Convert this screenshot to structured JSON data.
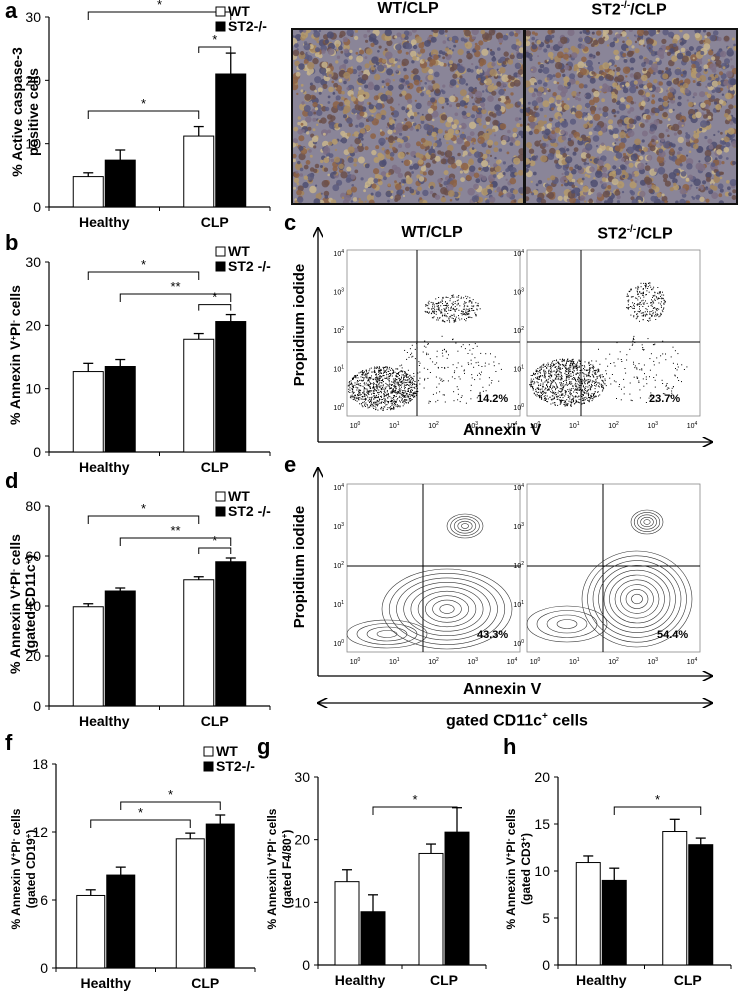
{
  "panel_letters": {
    "a": "a",
    "b": "b",
    "c": "c",
    "d": "d",
    "e": "e",
    "f": "f",
    "g": "g",
    "h": "h"
  },
  "legend": {
    "wt": "WT",
    "st2_a": "ST2-/-",
    "st2_b": "ST2 -/-",
    "st2_f": "ST2-/-"
  },
  "categories": [
    "Healthy",
    "CLP"
  ],
  "sig": {
    "one": "*",
    "two": "**"
  },
  "images": {
    "wt_title": "WT/CLP",
    "st2_title": "ST2",
    "st2_sup": "-/-",
    "st2_suffix": "/CLP"
  },
  "flow": {
    "y_title": "Propidium iodide",
    "x_title": "Annexin V",
    "gated": "gated CD11c",
    "gated_sup": "+",
    "gated_suffix": " cells",
    "c_pct_wt": "14.2%",
    "c_pct_st2": "23.7%",
    "e_pct_wt": "43.3%",
    "e_pct_st2": "54.4%",
    "tick_base": "10",
    "tick_exps": [
      "0",
      "1",
      "2",
      "3",
      "4"
    ]
  },
  "colors": {
    "wt": "#ffffff",
    "st2": "#000000",
    "stain_brown": "#8a5a3a",
    "stain_blue": "#5a6a8a"
  },
  "chart_data": [
    {
      "id": "a",
      "type": "bar",
      "ylabel_1": "% Active caspase-3",
      "ylabel_2": "positive cells",
      "ylim": [
        0,
        30
      ],
      "yticks": [
        0,
        10,
        20,
        30
      ],
      "series": [
        {
          "name": "WT",
          "values": [
            4.8,
            11.2
          ],
          "errors": [
            0.6,
            1.5
          ]
        },
        {
          "name": "ST2-/-",
          "values": [
            7.4,
            21.0
          ],
          "errors": [
            1.6,
            3.3
          ]
        }
      ],
      "brackets": [
        {
          "a": 0,
          "b": 2,
          "label": "*"
        },
        {
          "a": 0,
          "b": 3,
          "label": "*"
        },
        {
          "a": 2,
          "b": 3,
          "label": "*"
        }
      ]
    },
    {
      "id": "b",
      "type": "bar",
      "ylabel_1": "% Annexin V",
      "ylabel_2": "",
      "ylim": [
        0,
        30
      ],
      "yticks": [
        0,
        10,
        20,
        30
      ],
      "series": [
        {
          "name": "WT",
          "values": [
            12.7,
            17.8
          ],
          "errors": [
            1.3,
            0.9
          ]
        },
        {
          "name": "ST2 -/-",
          "values": [
            13.5,
            20.6
          ],
          "errors": [
            1.1,
            1.1
          ]
        }
      ],
      "brackets": [
        {
          "a": 0,
          "b": 2,
          "label": "*"
        },
        {
          "a": 1,
          "b": 3,
          "label": "**"
        },
        {
          "a": 2,
          "b": 3,
          "label": "*"
        }
      ]
    },
    {
      "id": "d",
      "type": "bar",
      "ylabel_1": "% Annexin V",
      "ylabel_2": "(gated CD11c",
      "ylim": [
        0,
        80
      ],
      "yticks": [
        0,
        20,
        40,
        60,
        80
      ],
      "series": [
        {
          "name": "WT",
          "values": [
            39.7,
            50.5
          ],
          "errors": [
            1.2,
            1.2
          ]
        },
        {
          "name": "ST2 -/-",
          "values": [
            46.0,
            57.7
          ],
          "errors": [
            1.2,
            1.5
          ]
        }
      ],
      "brackets": [
        {
          "a": 0,
          "b": 2,
          "label": "*"
        },
        {
          "a": 1,
          "b": 3,
          "label": "**"
        },
        {
          "a": 2,
          "b": 3,
          "label": "*"
        }
      ]
    },
    {
      "id": "f",
      "type": "bar",
      "ylabel_1": "% Annexin V",
      "ylabel_2": "(gated CD19",
      "ylim": [
        0,
        18
      ],
      "yticks": [
        0,
        6,
        12,
        18
      ],
      "series": [
        {
          "name": "WT",
          "values": [
            6.4,
            11.4
          ],
          "errors": [
            0.5,
            0.5
          ]
        },
        {
          "name": "ST2-/-",
          "values": [
            8.2,
            12.7
          ],
          "errors": [
            0.7,
            0.8
          ]
        }
      ],
      "brackets": [
        {
          "a": 0,
          "b": 2,
          "label": "*"
        },
        {
          "a": 1,
          "b": 3,
          "label": "*"
        }
      ]
    },
    {
      "id": "g",
      "type": "bar",
      "ylabel_1": "% Annexin V",
      "ylabel_2": "(gated F4/80",
      "ylim": [
        0,
        30
      ],
      "yticks": [
        0,
        10,
        20,
        30
      ],
      "series": [
        {
          "name": "WT",
          "values": [
            13.3,
            17.8
          ],
          "errors": [
            1.9,
            1.5
          ]
        },
        {
          "name": "ST2-/-",
          "values": [
            8.5,
            21.2
          ],
          "errors": [
            2.7,
            3.9
          ]
        }
      ],
      "brackets": [
        {
          "a": 1,
          "b": 3,
          "label": "*"
        }
      ]
    },
    {
      "id": "h",
      "type": "bar",
      "ylabel_1": "% Annexin V",
      "ylabel_2": "(gated CD3",
      "ylim": [
        0,
        20
      ],
      "yticks": [
        0,
        5,
        10,
        15,
        20
      ],
      "series": [
        {
          "name": "WT",
          "values": [
            10.9,
            14.2
          ],
          "errors": [
            0.7,
            1.3
          ]
        },
        {
          "name": "ST2-/-",
          "values": [
            9.0,
            12.8
          ],
          "errors": [
            1.3,
            0.7
          ]
        }
      ],
      "brackets": [
        {
          "a": 1,
          "b": 3,
          "label": "*"
        }
      ]
    }
  ]
}
